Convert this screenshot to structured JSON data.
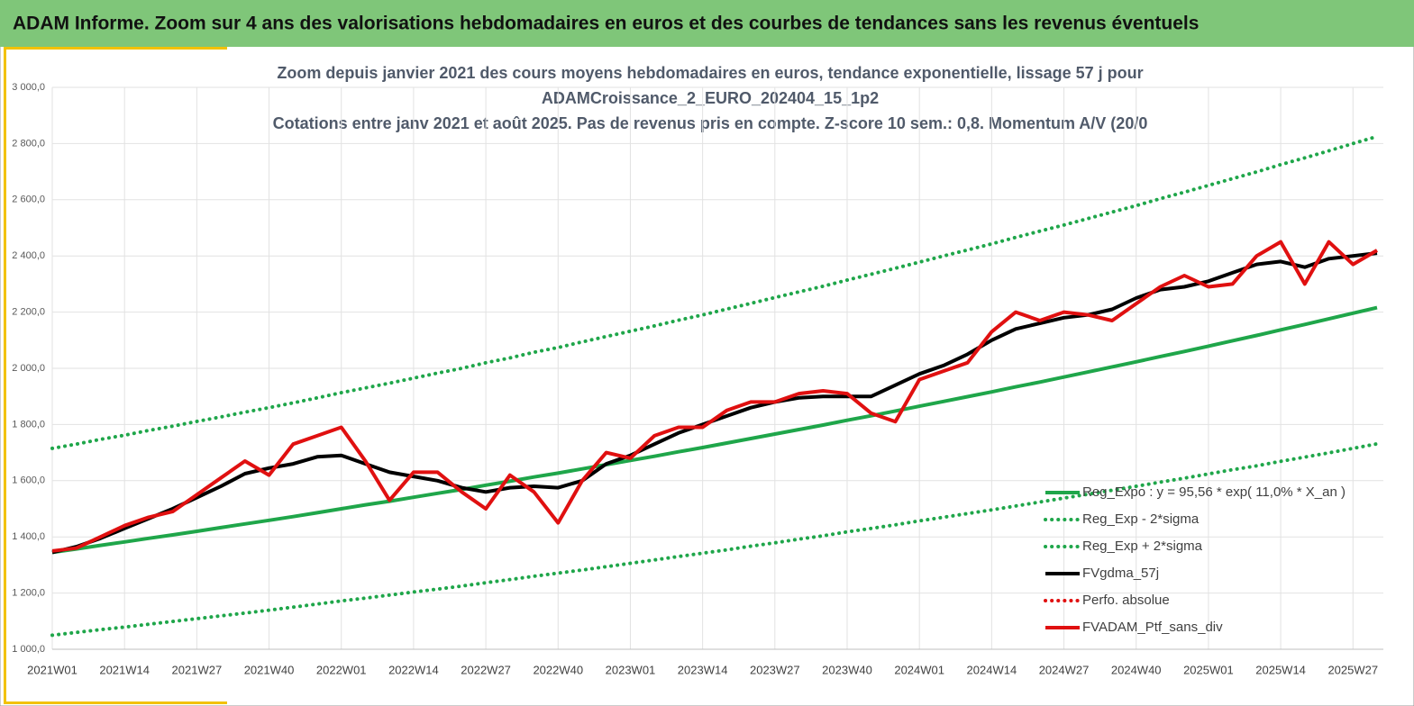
{
  "header": {
    "title": "ADAM Informe. Zoom sur 4 ans des valorisations hebdomadaires en euros et des courbes de tendances sans les revenus éventuels"
  },
  "chart_data": {
    "type": "line",
    "title": [
      "Zoom depuis janvier 2021 des cours moyens hebdomadaires  en euros, tendance exponentielle, lissage 57 j pour",
      "ADAMCroissance_2_EURO_202404_15_1p2",
      "Cotations entre janv 2021 et août 2025. Pas de revenus pris en compte. Z-score 10 sem.: 0,8. Momentum A/V (20/0"
    ],
    "categories": [
      "2021W01",
      null,
      null,
      "2021W14",
      null,
      null,
      "2021W27",
      null,
      null,
      "2021W40",
      null,
      null,
      "2022W01",
      null,
      null,
      "2022W14",
      null,
      null,
      "2022W27",
      null,
      null,
      "2022W40",
      null,
      null,
      "2023W01",
      null,
      null,
      "2023W14",
      null,
      null,
      "2023W27",
      null,
      null,
      "2023W40",
      null,
      null,
      "2024W01",
      null,
      null,
      "2024W14",
      null,
      null,
      "2024W27",
      null,
      null,
      "2024W40",
      null,
      null,
      "2025W01",
      null,
      null,
      "2025W14",
      null,
      null,
      "2025W27",
      null
    ],
    "ylim": [
      1000,
      3000
    ],
    "yticks": [
      {
        "value": 1000,
        "label": "1 000,0"
      },
      {
        "value": 1200,
        "label": "1 200,0"
      },
      {
        "value": 1400,
        "label": "1 400,0"
      },
      {
        "value": 1600,
        "label": "1 600,0"
      },
      {
        "value": 1800,
        "label": "1 800,0"
      },
      {
        "value": 2000,
        "label": "2 000,0"
      },
      {
        "value": 2200,
        "label": "2 200,0"
      },
      {
        "value": 2400,
        "label": "2 400,0"
      },
      {
        "value": 2600,
        "label": "2 600,0"
      },
      {
        "value": 2800,
        "label": "2 800,0"
      },
      {
        "value": 3000,
        "label": "3 000,0"
      }
    ],
    "grid": true,
    "legend": "lower right",
    "series": [
      {
        "name": "Reg_Expo : y = 95,56 * exp( 11,0% *  X_an )",
        "color": "#1fa64a",
        "style": "solid",
        "values": [
          1345,
          1357,
          1370,
          1382,
          1395,
          1407,
          1420,
          1433,
          1446,
          1459,
          1472,
          1486,
          1500,
          1514,
          1527,
          1541,
          1555,
          1569,
          1584,
          1598,
          1613,
          1627,
          1642,
          1657,
          1672,
          1687,
          1703,
          1718,
          1734,
          1750,
          1766,
          1782,
          1798,
          1815,
          1831,
          1848,
          1865,
          1882,
          1899,
          1916,
          1934,
          1951,
          1969,
          1987,
          2005,
          2023,
          2042,
          2060,
          2079,
          2098,
          2117,
          2137,
          2156,
          2176,
          2196,
          2216
        ]
      },
      {
        "name": "Reg_Exp - 2*sigma",
        "color": "#1fa64a",
        "style": "dotted",
        "values": [
          1050,
          1060,
          1070,
          1079,
          1089,
          1099,
          1109,
          1119,
          1129,
          1139,
          1150,
          1161,
          1172,
          1182,
          1193,
          1204,
          1214,
          1225,
          1237,
          1248,
          1260,
          1271,
          1282,
          1294,
          1306,
          1318,
          1330,
          1342,
          1354,
          1367,
          1379,
          1392,
          1404,
          1418,
          1430,
          1443,
          1457,
          1470,
          1483,
          1496,
          1510,
          1524,
          1538,
          1552,
          1566,
          1580,
          1595,
          1609,
          1624,
          1639,
          1653,
          1669,
          1684,
          1699,
          1715,
          1731
        ]
      },
      {
        "name": "Reg_Exp + 2*sigma",
        "color": "#1fa64a",
        "style": "dotted",
        "values": [
          1715,
          1730,
          1747,
          1762,
          1779,
          1794,
          1811,
          1827,
          1844,
          1860,
          1877,
          1895,
          1913,
          1930,
          1947,
          1965,
          1983,
          2000,
          2020,
          2037,
          2057,
          2074,
          2094,
          2113,
          2132,
          2151,
          2171,
          2190,
          2211,
          2231,
          2252,
          2272,
          2292,
          2314,
          2335,
          2356,
          2378,
          2400,
          2421,
          2443,
          2466,
          2488,
          2510,
          2533,
          2556,
          2579,
          2604,
          2627,
          2651,
          2675,
          2699,
          2725,
          2749,
          2774,
          2800,
          2825
        ]
      },
      {
        "name": "FVgdma_57j",
        "color": "#000000",
        "style": "solid",
        "values": [
          1345,
          1365,
          1395,
          1430,
          1465,
          1500,
          1540,
          1580,
          1625,
          1645,
          1660,
          1685,
          1690,
          1660,
          1630,
          1615,
          1600,
          1575,
          1560,
          1575,
          1580,
          1575,
          1600,
          1660,
          1690,
          1730,
          1770,
          1800,
          1830,
          1860,
          1880,
          1895,
          1900,
          1900,
          1900,
          1940,
          1980,
          2010,
          2050,
          2100,
          2140,
          2160,
          2180,
          2190,
          2210,
          2250,
          2280,
          2290,
          2310,
          2340,
          2370,
          2380,
          2360,
          2390,
          2400,
          2410
        ]
      },
      {
        "name": "Perfo. absolue",
        "color": "#e01010",
        "style": "dotted",
        "values": [
          null,
          null,
          null,
          null,
          null,
          null,
          null,
          null,
          null,
          null,
          null,
          null,
          null,
          null,
          null,
          null,
          null,
          null,
          null,
          null,
          null,
          null,
          null,
          null,
          null,
          null,
          null,
          null,
          null,
          null,
          null,
          null,
          null,
          null,
          null,
          null,
          null,
          null,
          null,
          null,
          null,
          null,
          null,
          null,
          null,
          null,
          null,
          null,
          null,
          null,
          null,
          null,
          null,
          null,
          null,
          null
        ]
      },
      {
        "name": "FVADAM_Ptf_sans_div",
        "color": "#e01010",
        "style": "solid",
        "values": [
          1350,
          1360,
          1400,
          1440,
          1470,
          1490,
          1550,
          1610,
          1670,
          1620,
          1730,
          1760,
          1790,
          1670,
          1530,
          1630,
          1630,
          1560,
          1500,
          1620,
          1560,
          1450,
          1600,
          1700,
          1680,
          1760,
          1790,
          1790,
          1850,
          1880,
          1880,
          1910,
          1920,
          1910,
          1840,
          1810,
          1960,
          1990,
          2020,
          2130,
          2200,
          2170,
          2200,
          2190,
          2170,
          2230,
          2290,
          2330,
          2290,
          2300,
          2400,
          2450,
          2300,
          2450,
          2370,
          2420
        ]
      }
    ]
  }
}
